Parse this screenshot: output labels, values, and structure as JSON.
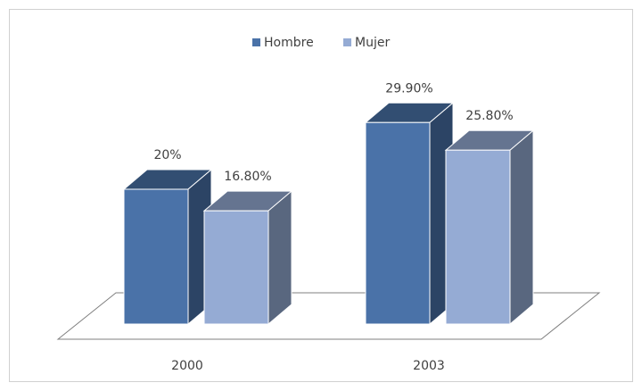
{
  "chart_data": {
    "type": "bar3d",
    "categories": [
      "2000",
      "2003"
    ],
    "series": [
      {
        "name": "Hombre",
        "color": "#4a72a8",
        "values": [
          20,
          29.9
        ],
        "value_labels": [
          "20%",
          "29.90%"
        ]
      },
      {
        "name": "Mujer",
        "color": "#95abd4",
        "values": [
          16.8,
          25.8
        ],
        "value_labels": [
          "16.80%",
          "25.80%"
        ]
      }
    ],
    "legend": "top"
  }
}
